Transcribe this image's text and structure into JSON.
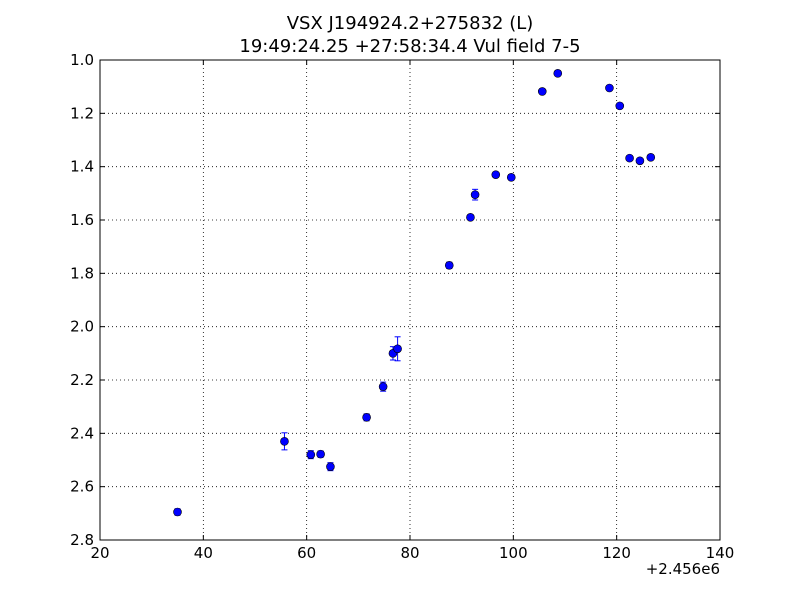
{
  "chart_data": {
    "type": "scatter",
    "title": "VSX J194924.2+275832 (L)",
    "subtitle": "19:49:24.25 +27:58:34.4 Vul field 7-5",
    "xlabel": "",
    "ylabel": "",
    "x_offset_label": "+2.456e6",
    "xlim": [
      20,
      140
    ],
    "ylim": [
      1.0,
      2.8
    ],
    "y_inverted": true,
    "grid": true,
    "legend": "none",
    "x_ticks": [
      20,
      40,
      60,
      80,
      100,
      120,
      140
    ],
    "x_tick_labels": [
      "20",
      "40",
      "60",
      "80",
      "100",
      "120",
      "140"
    ],
    "y_ticks": [
      1.0,
      1.2,
      1.4,
      1.6,
      1.8,
      2.0,
      2.2,
      2.4,
      2.6,
      2.8
    ],
    "y_tick_labels": [
      "1.0",
      "1.2",
      "1.4",
      "1.6",
      "1.8",
      "2.0",
      "2.2",
      "2.4",
      "2.6",
      "2.8"
    ],
    "marker_color": "#0000ff",
    "points": [
      {
        "x": 35.0,
        "y": 2.695,
        "err": 0.012
      },
      {
        "x": 55.7,
        "y": 2.43,
        "err": 0.032
      },
      {
        "x": 60.8,
        "y": 2.48,
        "err": 0.015
      },
      {
        "x": 62.7,
        "y": 2.478,
        "err": 0.012
      },
      {
        "x": 64.6,
        "y": 2.525,
        "err": 0.015
      },
      {
        "x": 71.6,
        "y": 2.34,
        "err": 0.013
      },
      {
        "x": 74.8,
        "y": 2.225,
        "err": 0.017
      },
      {
        "x": 76.7,
        "y": 2.1,
        "err": 0.025
      },
      {
        "x": 77.6,
        "y": 2.083,
        "err": 0.045
      },
      {
        "x": 87.6,
        "y": 1.77,
        "err": 0.012
      },
      {
        "x": 91.7,
        "y": 1.59,
        "err": 0.008
      },
      {
        "x": 92.6,
        "y": 1.505,
        "err": 0.02
      },
      {
        "x": 96.6,
        "y": 1.43,
        "err": 0.008
      },
      {
        "x": 99.6,
        "y": 1.44,
        "err": 0.01
      },
      {
        "x": 105.6,
        "y": 1.118,
        "err": 0.008
      },
      {
        "x": 108.6,
        "y": 1.05,
        "err": 0.008
      },
      {
        "x": 118.6,
        "y": 1.105,
        "err": 0.008
      },
      {
        "x": 120.6,
        "y": 1.172,
        "err": 0.01
      },
      {
        "x": 122.5,
        "y": 1.368,
        "err": 0.008
      },
      {
        "x": 124.5,
        "y": 1.378,
        "err": 0.008
      },
      {
        "x": 126.6,
        "y": 1.365,
        "err": 0.008
      }
    ]
  }
}
